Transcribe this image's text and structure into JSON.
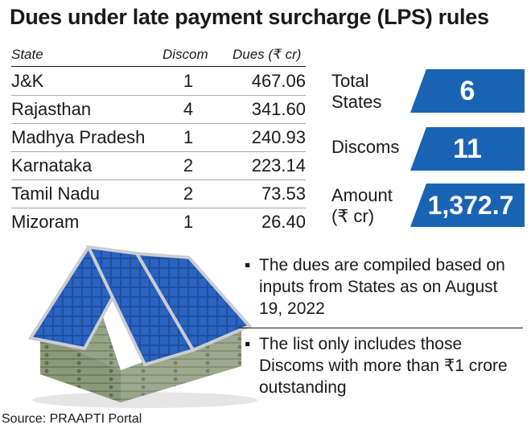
{
  "title": "Dues under late payment surcharge (LPS) rules",
  "table": {
    "headers": {
      "state": "State",
      "discom": "Discom",
      "dues": "Dues (₹ cr)"
    },
    "rows": [
      {
        "state": "J&K",
        "discom": "1",
        "dues": "467.06"
      },
      {
        "state": "Rajasthan",
        "discom": "4",
        "dues": "341.60"
      },
      {
        "state": "Madhya Pradesh",
        "discom": "1",
        "dues": "240.93"
      },
      {
        "state": "Karnataka",
        "discom": "2",
        "dues": "223.14"
      },
      {
        "state": "Tamil Nadu",
        "discom": "2",
        "dues": "73.53"
      },
      {
        "state": "Mizoram",
        "discom": "1",
        "dues": "26.40"
      }
    ]
  },
  "stats": {
    "total_states": {
      "label_line1": "Total",
      "label_line2": "States",
      "value": "6"
    },
    "discoms": {
      "label": "Discoms",
      "value": "11"
    },
    "amount": {
      "label_line1": "Amount",
      "label_line2": "(₹ cr)",
      "value": "1,372.7"
    }
  },
  "notes": [
    {
      "bullet": "▪",
      "text": "The dues are compiled based on inputs from States as on August 19, 2022"
    },
    {
      "bullet": "▪",
      "text": "The list only includes those Discoms with more than ₹1 crore outstanding"
    }
  ],
  "source": "Source: PRAAPTI Portal",
  "colors": {
    "accent": "#1a63b3",
    "text": "#1a1a1a",
    "solar_panel": "#1f4fa0",
    "banknote": "#8a9a78"
  },
  "illustration": {
    "icon": "solar-panel-house-of-banknotes"
  },
  "chart_data": {
    "type": "table",
    "title": "Dues under late payment surcharge (LPS) rules",
    "columns": [
      "State",
      "Discom",
      "Dues (₹ cr)"
    ],
    "categories": [
      "J&K",
      "Rajasthan",
      "Madhya Pradesh",
      "Karnataka",
      "Tamil Nadu",
      "Mizoram"
    ],
    "series": [
      {
        "name": "Discom",
        "values": [
          1,
          4,
          1,
          2,
          2,
          1
        ]
      },
      {
        "name": "Dues (₹ cr)",
        "values": [
          467.06,
          341.6,
          240.93,
          223.14,
          73.53,
          26.4
        ]
      }
    ],
    "totals": {
      "Total States": 6,
      "Discoms": 11,
      "Amount (₹ cr)": 1372.7
    }
  }
}
